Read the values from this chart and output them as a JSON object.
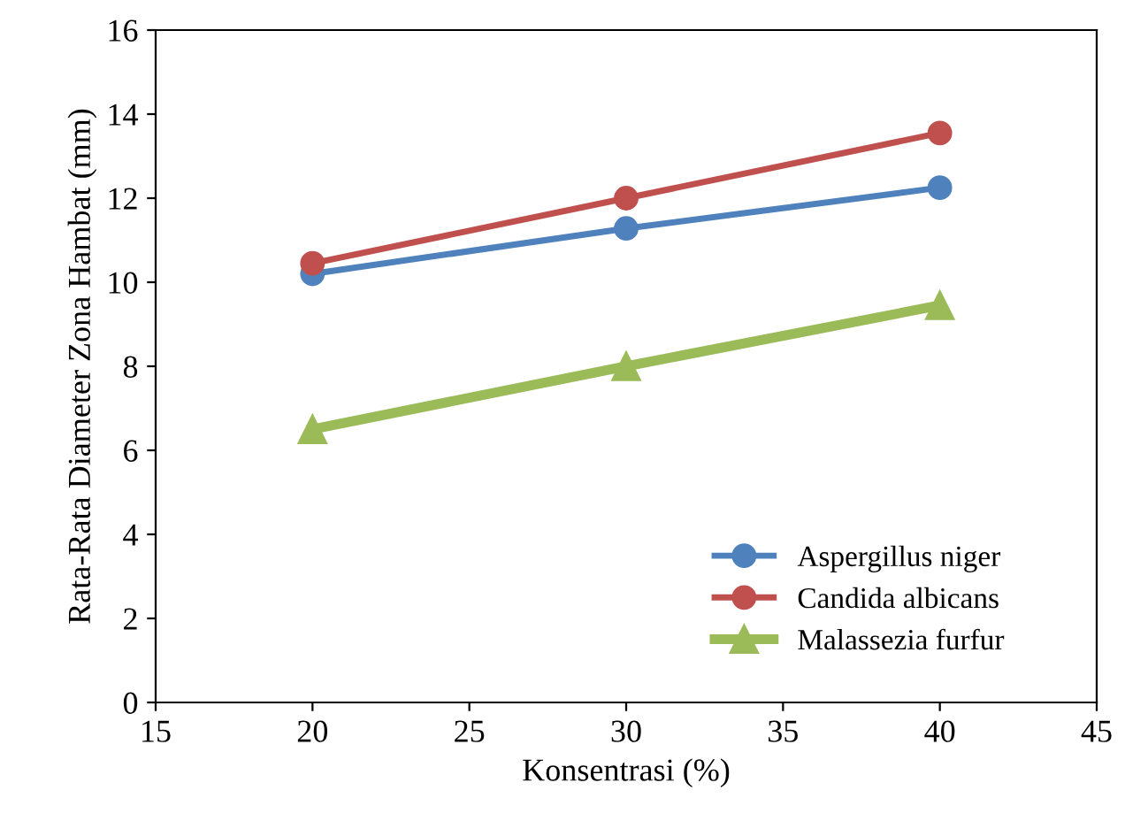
{
  "chart_data": {
    "type": "line",
    "xlabel": "Konsentrasi (%)",
    "ylabel": "Rata-Rata Diameter Zona Hambat (mm)",
    "x": [
      20,
      30,
      40
    ],
    "series": [
      {
        "name": "Aspergillus niger",
        "color": "#4f81bd",
        "marker": "circle",
        "values": [
          10.2,
          11.28,
          12.25
        ]
      },
      {
        "name": "Candida albicans",
        "color": "#c0504d",
        "marker": "circle",
        "values": [
          10.45,
          12.0,
          13.55
        ]
      },
      {
        "name": "Malassezia furfur",
        "color": "#9bbb59",
        "marker": "triangle",
        "values": [
          6.5,
          8.0,
          9.45
        ]
      }
    ],
    "xlim": [
      15,
      45
    ],
    "xticks": [
      15,
      20,
      25,
      30,
      35,
      40,
      45
    ],
    "ylim": [
      0,
      16
    ],
    "yticks": [
      0,
      2,
      4,
      6,
      8,
      10,
      12,
      14,
      16
    ],
    "grid": false,
    "legend": "bottom right",
    "line_style": "solid"
  }
}
